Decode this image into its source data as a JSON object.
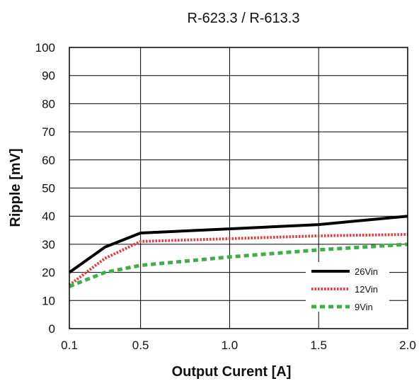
{
  "chart_data": {
    "type": "line",
    "title": "R-623.3 / R-613.3",
    "xlabel": "Output Curent [A]",
    "ylabel": "Ripple [mV]",
    "xlim": [
      0.1,
      2.0
    ],
    "ylim": [
      0,
      100
    ],
    "x_ticks": [
      "0.1",
      "0.5",
      "1.0",
      "1.5",
      "2.0"
    ],
    "x_tick_values": [
      0.1,
      0.5,
      1.0,
      1.5,
      2.0
    ],
    "y_ticks": [
      "0",
      "10",
      "20",
      "30",
      "40",
      "50",
      "60",
      "70",
      "80",
      "90",
      "100"
    ],
    "y_tick_values": [
      0,
      10,
      20,
      30,
      40,
      50,
      60,
      70,
      80,
      90,
      100
    ],
    "grid": true,
    "legend_position": "bottom-right",
    "series": [
      {
        "name": "26Vin",
        "color": "#000000",
        "style": "solid",
        "x": [
          0.1,
          0.3,
          0.5,
          1.0,
          1.5,
          2.0
        ],
        "y": [
          20,
          29,
          34,
          35.5,
          37,
          40
        ]
      },
      {
        "name": "12Vin",
        "color": "#e8393f",
        "style": "dotted",
        "x": [
          0.1,
          0.3,
          0.5,
          1.0,
          1.5,
          2.0
        ],
        "y": [
          15.5,
          25,
          31,
          32,
          33,
          33.5
        ]
      },
      {
        "name": "9Vin",
        "color": "#3fae49",
        "style": "dashed",
        "x": [
          0.1,
          0.3,
          0.5,
          1.0,
          1.5,
          2.0
        ],
        "y": [
          15,
          20,
          22.5,
          25.5,
          28,
          30
        ]
      }
    ]
  }
}
